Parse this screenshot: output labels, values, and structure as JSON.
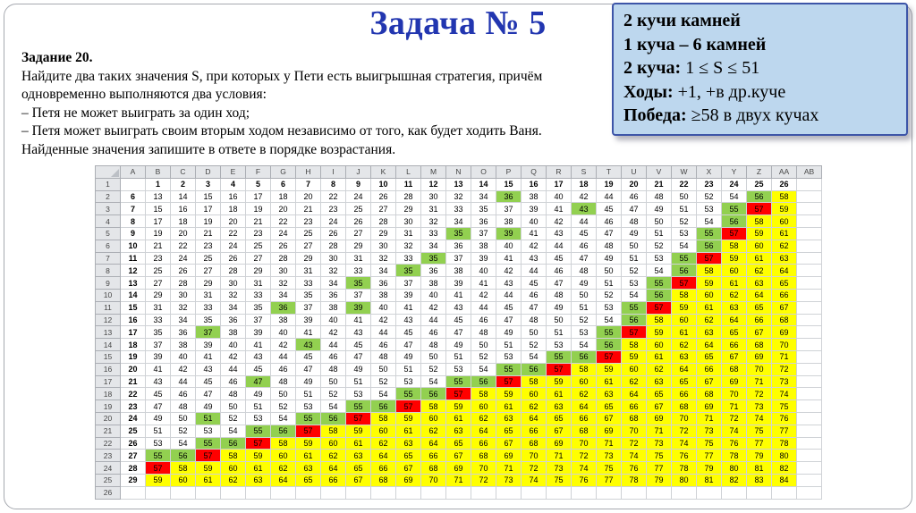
{
  "slide": {
    "title": "Задача № 5",
    "task": {
      "heading": "Задание 20.",
      "lines": [
        "Найдите два таких значения S, при которых у Пети есть выигрышная стратегия, причём",
        "одновременно выполняются два условия:",
        "– Петя не может выиграть за один ход;",
        "– Петя может выиграть своим вторым ходом независимо от того, как будет ходить Ваня.",
        "Найденные значения запишите в ответе в порядке возрастания."
      ]
    },
    "info_box": {
      "bg_color": "#BDD7EE",
      "border_color": "#3D55A8",
      "lines": [
        {
          "label": "2 кучи камней",
          "text": ""
        },
        {
          "label": "1 куча – 6 камней",
          "text": ""
        },
        {
          "label": "2 куча:",
          "text": " 1 ≤ S ≤ 51"
        },
        {
          "label": "Ходы:",
          "text": " +1, +в др.куче"
        },
        {
          "label": "Победа:",
          "text": " ≥58 в двух кучах"
        }
      ]
    }
  },
  "spreadsheet": {
    "column_letters": [
      "A",
      "B",
      "C",
      "D",
      "E",
      "F",
      "G",
      "H",
      "I",
      "J",
      "K",
      "L",
      "M",
      "N",
      "O",
      "P",
      "Q",
      "R",
      "S",
      "T",
      "U",
      "V",
      "W",
      "X",
      "Y",
      "Z",
      "AA",
      "AB"
    ],
    "row_numbers": [
      1,
      2,
      3,
      4,
      5,
      6,
      7,
      8,
      9,
      10,
      11,
      12,
      13,
      14,
      15,
      16,
      17,
      18,
      19,
      20,
      21,
      22,
      23,
      24,
      25,
      26
    ],
    "first_row_values": [
      1,
      2,
      3,
      4,
      5,
      6,
      7,
      8,
      9,
      10,
      11,
      12,
      13,
      14,
      15,
      16,
      17,
      18,
      19,
      20,
      21,
      22,
      23,
      24,
      25,
      26
    ],
    "color_map": {
      "w": "#FFFFFF",
      "g": "#92D050",
      "r": "#FF0000",
      "y": "#FFFF00"
    },
    "rows": [
      {
        "label": 6,
        "values": [
          13,
          14,
          15,
          16,
          17,
          18,
          20,
          22,
          24,
          26,
          28,
          30,
          32,
          34,
          36,
          38,
          40,
          42,
          44,
          46,
          48,
          50,
          52,
          54,
          56,
          58
        ],
        "colors": "wwwwwwwwwwwwwwgwwwwwwwwwgy"
      },
      {
        "label": 7,
        "values": [
          15,
          16,
          17,
          18,
          19,
          20,
          21,
          23,
          25,
          27,
          29,
          31,
          33,
          35,
          37,
          39,
          41,
          43,
          45,
          47,
          49,
          51,
          53,
          55,
          57,
          59
        ],
        "colors": "wwwwwwwwwwwwwwwwwgwwwwwgry"
      },
      {
        "label": 8,
        "values": [
          17,
          18,
          19,
          20,
          21,
          22,
          23,
          24,
          26,
          28,
          30,
          32,
          34,
          36,
          38,
          40,
          42,
          44,
          46,
          48,
          50,
          52,
          54,
          56,
          58,
          60
        ],
        "colors": "wwwwwwwwwwwwwwwwwwwwwwwgyy"
      },
      {
        "label": 9,
        "values": [
          19,
          20,
          21,
          22,
          23,
          24,
          25,
          26,
          27,
          29,
          31,
          33,
          35,
          37,
          39,
          41,
          43,
          45,
          47,
          49,
          51,
          53,
          55,
          57,
          59,
          61
        ],
        "colors": "wwwwwwwwwwwwgwgwwwwwwwgryy"
      },
      {
        "label": 10,
        "values": [
          21,
          22,
          23,
          24,
          25,
          26,
          27,
          28,
          29,
          30,
          32,
          34,
          36,
          38,
          40,
          42,
          44,
          46,
          48,
          50,
          52,
          54,
          56,
          58,
          60,
          62
        ],
        "colors": "wwwwwwwwwwwwwwwwwwwwwwgyyy"
      },
      {
        "label": 11,
        "values": [
          23,
          24,
          25,
          26,
          27,
          28,
          29,
          30,
          31,
          32,
          33,
          35,
          37,
          39,
          41,
          43,
          45,
          47,
          49,
          51,
          53,
          55,
          57,
          59,
          61,
          63
        ],
        "colors": "wwwwwwwwwwwgwwwwwwwwwgryyy"
      },
      {
        "label": 12,
        "values": [
          25,
          26,
          27,
          28,
          29,
          30,
          31,
          32,
          33,
          34,
          35,
          36,
          38,
          40,
          42,
          44,
          46,
          48,
          50,
          52,
          54,
          56,
          58,
          60,
          62,
          64
        ],
        "colors": "wwwwwwwwwwgwwwwwwwwwwgyyyy"
      },
      {
        "label": 13,
        "values": [
          27,
          28,
          29,
          30,
          31,
          32,
          33,
          34,
          35,
          36,
          37,
          38,
          39,
          41,
          43,
          45,
          47,
          49,
          51,
          53,
          55,
          57,
          59,
          61,
          63,
          65
        ],
        "colors": "wwwwwwwwgwwwwwwwwwwwgryyyy"
      },
      {
        "label": 14,
        "values": [
          29,
          30,
          31,
          32,
          33,
          34,
          35,
          36,
          37,
          38,
          39,
          40,
          41,
          42,
          44,
          46,
          48,
          50,
          52,
          54,
          56,
          58,
          60,
          62,
          64,
          66
        ],
        "colors": "wwwwwwwwwwwwwwwwwwwwgyyyyy"
      },
      {
        "label": 15,
        "values": [
          31,
          32,
          33,
          34,
          35,
          36,
          37,
          38,
          39,
          40,
          41,
          42,
          43,
          44,
          45,
          47,
          49,
          51,
          53,
          55,
          57,
          59,
          61,
          63,
          65,
          67
        ],
        "colors": "wwwwwgwwgwwwwwwwwwwgryyyyy"
      },
      {
        "label": 16,
        "values": [
          33,
          34,
          35,
          36,
          37,
          38,
          39,
          40,
          41,
          42,
          43,
          44,
          45,
          46,
          47,
          48,
          50,
          52,
          54,
          56,
          58,
          60,
          62,
          64,
          66,
          68
        ],
        "colors": "wwwwwwwwwwwwwwwwwwwgyyyyyy"
      },
      {
        "label": 17,
        "values": [
          35,
          36,
          37,
          38,
          39,
          40,
          41,
          42,
          43,
          44,
          45,
          46,
          47,
          48,
          49,
          50,
          51,
          53,
          55,
          57,
          59,
          61,
          63,
          65,
          67,
          69
        ],
        "colors": "wwgwwwwwwwwwwwwwwwgryyyyyy"
      },
      {
        "label": 18,
        "values": [
          37,
          38,
          39,
          40,
          41,
          42,
          43,
          44,
          45,
          46,
          47,
          48,
          49,
          50,
          51,
          52,
          53,
          54,
          56,
          58,
          60,
          62,
          64,
          66,
          68,
          70
        ],
        "colors": "wwwwwwgwwwwwwwwwwwgyyyyyyy"
      },
      {
        "label": 19,
        "values": [
          39,
          40,
          41,
          42,
          43,
          44,
          45,
          46,
          47,
          48,
          49,
          50,
          51,
          52,
          53,
          54,
          55,
          56,
          57,
          59,
          61,
          63,
          65,
          67,
          69,
          71
        ],
        "colors": "wwwwwwwwwwwwwwwwggryyyyyyy"
      },
      {
        "label": 20,
        "values": [
          41,
          42,
          43,
          44,
          45,
          46,
          47,
          48,
          49,
          50,
          51,
          52,
          53,
          54,
          55,
          56,
          57,
          58,
          59,
          60,
          62,
          64,
          66,
          68,
          70,
          72
        ],
        "colors": "wwwwwwwwwwwwwwggryyyyyyyyy"
      },
      {
        "label": 21,
        "values": [
          43,
          44,
          45,
          46,
          47,
          48,
          49,
          50,
          51,
          52,
          53,
          54,
          55,
          56,
          57,
          58,
          59,
          60,
          61,
          62,
          63,
          65,
          67,
          69,
          71,
          73
        ],
        "colors": "wwwwgwwwwwwwggryyyyyyyyyyy"
      },
      {
        "label": 22,
        "values": [
          45,
          46,
          47,
          48,
          49,
          50,
          51,
          52,
          53,
          54,
          55,
          56,
          57,
          58,
          59,
          60,
          61,
          62,
          63,
          64,
          65,
          66,
          68,
          70,
          72,
          74
        ],
        "colors": "wwwwwwwwwwggryyyyyyyyyyyyy"
      },
      {
        "label": 23,
        "values": [
          47,
          48,
          49,
          50,
          51,
          52,
          53,
          54,
          55,
          56,
          57,
          58,
          59,
          60,
          61,
          62,
          63,
          64,
          65,
          66,
          67,
          68,
          69,
          71,
          73,
          75
        ],
        "colors": "wwwwwwwwggryyyyyyyyyyyyyyy"
      },
      {
        "label": 24,
        "values": [
          49,
          50,
          51,
          52,
          53,
          54,
          55,
          56,
          57,
          58,
          59,
          60,
          61,
          62,
          63,
          64,
          65,
          66,
          67,
          68,
          69,
          70,
          71,
          72,
          74,
          76
        ],
        "colors": "wwgwwwggryyyyyyyyyyyyyyyyy"
      },
      {
        "label": 25,
        "values": [
          51,
          52,
          53,
          54,
          55,
          56,
          57,
          58,
          59,
          60,
          61,
          62,
          63,
          64,
          65,
          66,
          67,
          68,
          69,
          70,
          71,
          72,
          73,
          74,
          75,
          77
        ],
        "colors": "wwwwggryyyyyyyyyyyyyyyyyyy"
      },
      {
        "label": 26,
        "values": [
          53,
          54,
          55,
          56,
          57,
          58,
          59,
          60,
          61,
          62,
          63,
          64,
          65,
          66,
          67,
          68,
          69,
          70,
          71,
          72,
          73,
          74,
          75,
          76,
          77,
          78
        ],
        "colors": "wwggryyyyyyyyyyyyyyyyyyyyy"
      },
      {
        "label": 27,
        "values": [
          55,
          56,
          57,
          58,
          59,
          60,
          61,
          62,
          63,
          64,
          65,
          66,
          67,
          68,
          69,
          70,
          71,
          72,
          73,
          74,
          75,
          76,
          77,
          78,
          79,
          80
        ],
        "colors": "ggryyyyyyyyyyyyyyyyyyyyyyy"
      },
      {
        "label": 28,
        "values": [
          57,
          58,
          59,
          60,
          61,
          62,
          63,
          64,
          65,
          66,
          67,
          68,
          69,
          70,
          71,
          72,
          73,
          74,
          75,
          76,
          77,
          78,
          79,
          80,
          81,
          82
        ],
        "colors": "ryyyyyyyyyyyyyyyyyyyyyyyyy"
      },
      {
        "label": 29,
        "values": [
          59,
          60,
          61,
          62,
          63,
          64,
          65,
          66,
          67,
          68,
          69,
          70,
          71,
          72,
          73,
          74,
          75,
          76,
          77,
          78,
          79,
          80,
          81,
          82,
          83,
          84
        ],
        "colors": "yyyyyyyyyyyyyyyyyyyyyyyyyy"
      }
    ]
  }
}
